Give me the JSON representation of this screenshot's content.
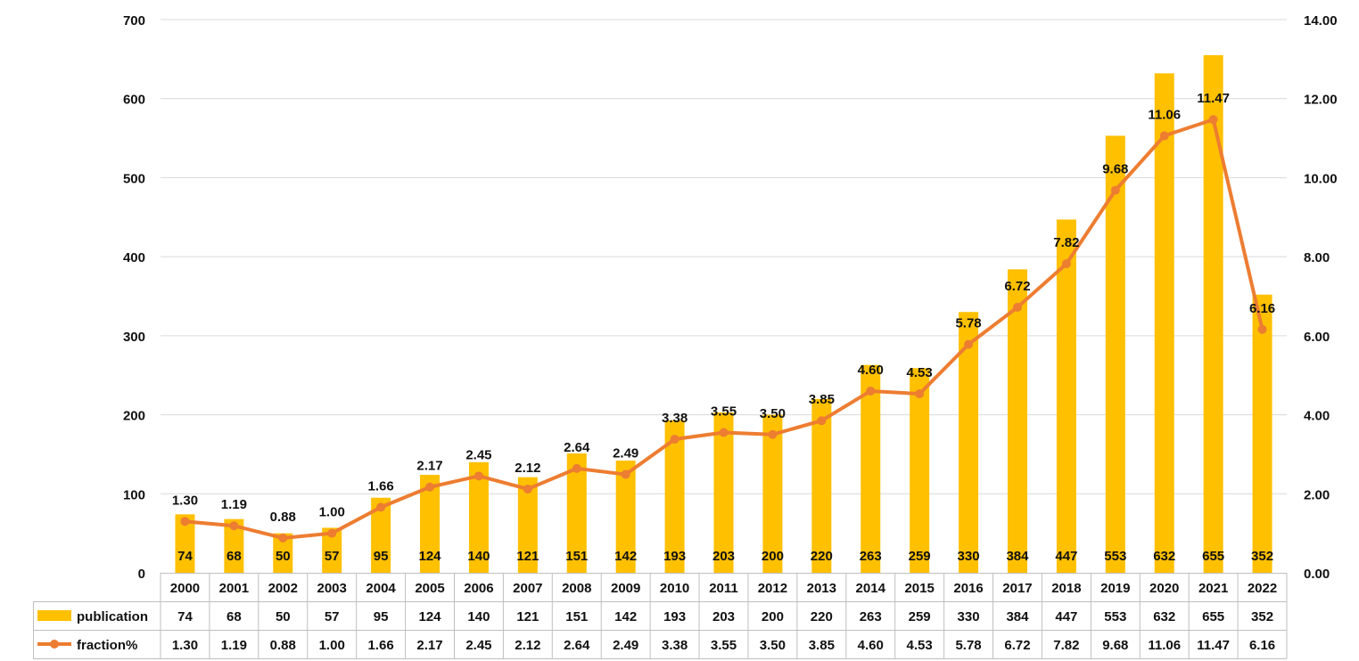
{
  "chart_data": {
    "type": "bar",
    "categories": [
      "2000",
      "2001",
      "2002",
      "2003",
      "2004",
      "2005",
      "2006",
      "2007",
      "2008",
      "2009",
      "2010",
      "2011",
      "2012",
      "2013",
      "2014",
      "2015",
      "2016",
      "2017",
      "2018",
      "2019",
      "2020",
      "2021",
      "2022"
    ],
    "series": [
      {
        "name": "publication",
        "type": "bar",
        "axis": "left",
        "values": [
          74,
          68,
          50,
          57,
          95,
          124,
          140,
          121,
          151,
          142,
          193,
          203,
          200,
          220,
          263,
          259,
          330,
          384,
          447,
          553,
          632,
          655,
          352
        ],
        "labels": [
          "74",
          "68",
          "50",
          "57",
          "95",
          "124",
          "140",
          "121",
          "151",
          "142",
          "193",
          "203",
          "200",
          "220",
          "263",
          "259",
          "330",
          "384",
          "447",
          "553",
          "632",
          "655",
          "352"
        ],
        "color": "#FFC000"
      },
      {
        "name": "fraction%",
        "type": "line",
        "axis": "right",
        "values": [
          1.3,
          1.19,
          0.88,
          1.0,
          1.66,
          2.17,
          2.45,
          2.12,
          2.64,
          2.49,
          3.38,
          3.55,
          3.5,
          3.85,
          4.6,
          4.53,
          5.78,
          6.72,
          7.82,
          9.68,
          11.06,
          11.47,
          6.16
        ],
        "labels": [
          "1.30",
          "1.19",
          "0.88",
          "1.00",
          "1.66",
          "2.17",
          "2.45",
          "2.12",
          "2.64",
          "2.49",
          "3.38",
          "3.55",
          "3.50",
          "3.85",
          "4.60",
          "4.53",
          "5.78",
          "6.72",
          "7.82",
          "9.68",
          "11.06",
          "11.47",
          "6.16"
        ],
        "color": "#ED7D31"
      }
    ],
    "y_left": {
      "ylim": [
        0,
        700
      ],
      "ticks": [
        "0",
        "100",
        "200",
        "300",
        "400",
        "500",
        "600",
        "700"
      ]
    },
    "y_right": {
      "ylim": [
        0,
        14
      ],
      "ticks": [
        "0.00",
        "2.00",
        "4.00",
        "6.00",
        "8.00",
        "10.00",
        "12.00",
        "14.00"
      ]
    },
    "grid": true,
    "legend": "data-table-bottom",
    "title": "",
    "xlabel": "",
    "ylabel": ""
  }
}
